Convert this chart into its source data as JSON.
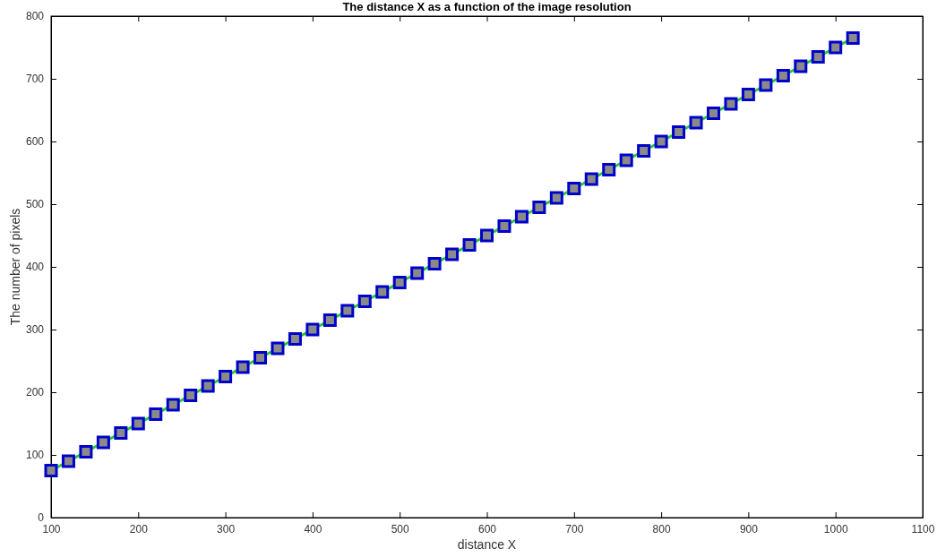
{
  "chart_data": {
    "type": "line",
    "title": "The distance X as a function of the image resolution",
    "xlabel": "distance X",
    "ylabel": "The number of pixels",
    "x": [
      100,
      120,
      140,
      160,
      180,
      200,
      220,
      240,
      260,
      280,
      300,
      320,
      340,
      360,
      380,
      400,
      420,
      440,
      460,
      480,
      500,
      520,
      540,
      560,
      580,
      600,
      620,
      640,
      660,
      680,
      700,
      720,
      740,
      760,
      780,
      800,
      820,
      840,
      860,
      880,
      900,
      920,
      940,
      960,
      980,
      1000,
      1020
    ],
    "series": [
      {
        "color": "#22cc33",
        "values": [
          75,
          90,
          105,
          120,
          135,
          150,
          165,
          180,
          195,
          210,
          225,
          240,
          255,
          270,
          285,
          300,
          315,
          330,
          345,
          360,
          375,
          390,
          405,
          420,
          435,
          450,
          465,
          480,
          495,
          510,
          525,
          540,
          555,
          570,
          585,
          600,
          615,
          630,
          645,
          660,
          675,
          690,
          705,
          720,
          735,
          750,
          765
        ]
      }
    ],
    "xlim": [
      100,
      1100
    ],
    "xticks": [
      100,
      200,
      300,
      400,
      500,
      600,
      700,
      800,
      900,
      1000,
      1100
    ],
    "ylim": [
      0,
      800
    ],
    "yticks": [
      0,
      100,
      200,
      300,
      400,
      500,
      600,
      700,
      800
    ],
    "marker": "square",
    "line_style": "solid",
    "grid": false
  }
}
